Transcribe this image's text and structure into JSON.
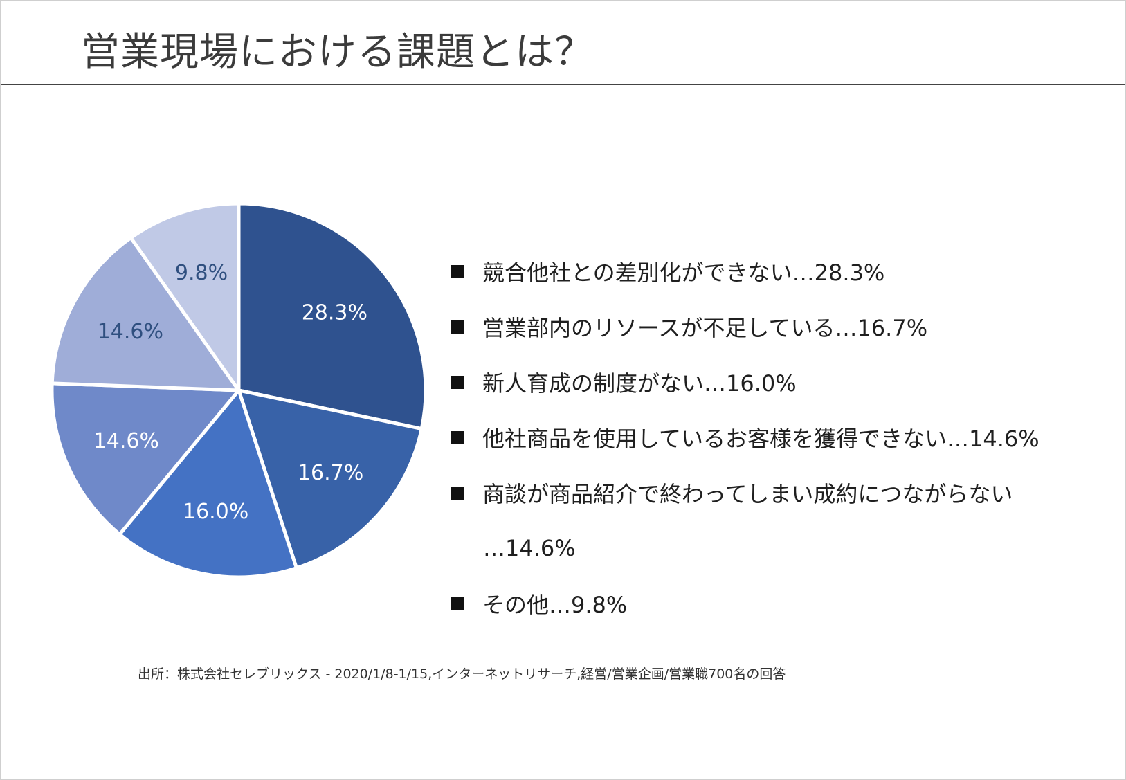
{
  "title": "営業現場における課題とは？",
  "source": "出所：株式会社セレブリックス - 2020/1/8-1/15,インターネットリサーチ,経営/営業企画/営業職700名の回答",
  "legend": [
    "競合他社との差別化ができない…28.3%",
    "営業部内のリソースが不足している…16.7%",
    "新人育成の制度がない…16.0%",
    "他社商品を使用しているお客様を獲得できない…14.6%",
    "商談が商品紹介で終わってしまい成約につながらない",
    "…14.6%",
    "その他…9.8%"
  ],
  "chart_data": {
    "type": "pie",
    "categories": [
      "競合他社との差別化ができない",
      "営業部内のリソースが不足している",
      "新人育成の制度がない",
      "他社商品を使用しているお客様を獲得できない",
      "商談が商品紹介で終わってしまい成約につながらない",
      "その他"
    ],
    "values": [
      28.3,
      16.7,
      16.0,
      14.6,
      14.6,
      9.8
    ],
    "labels": [
      "28.3%",
      "16.7%",
      "16.0%",
      "14.6%",
      "14.6%",
      "9.8%"
    ],
    "colors": [
      "#2f528f",
      "#3862a8",
      "#4472c4",
      "#6f89c9",
      "#9fadd8",
      "#c0c9e6"
    ],
    "label_colors": [
      "#ffffff",
      "#ffffff",
      "#ffffff",
      "#ffffff",
      "#2f4f7f",
      "#2f4f7f"
    ],
    "start": "12 o'clock, clockwise",
    "legend_position": "right"
  }
}
